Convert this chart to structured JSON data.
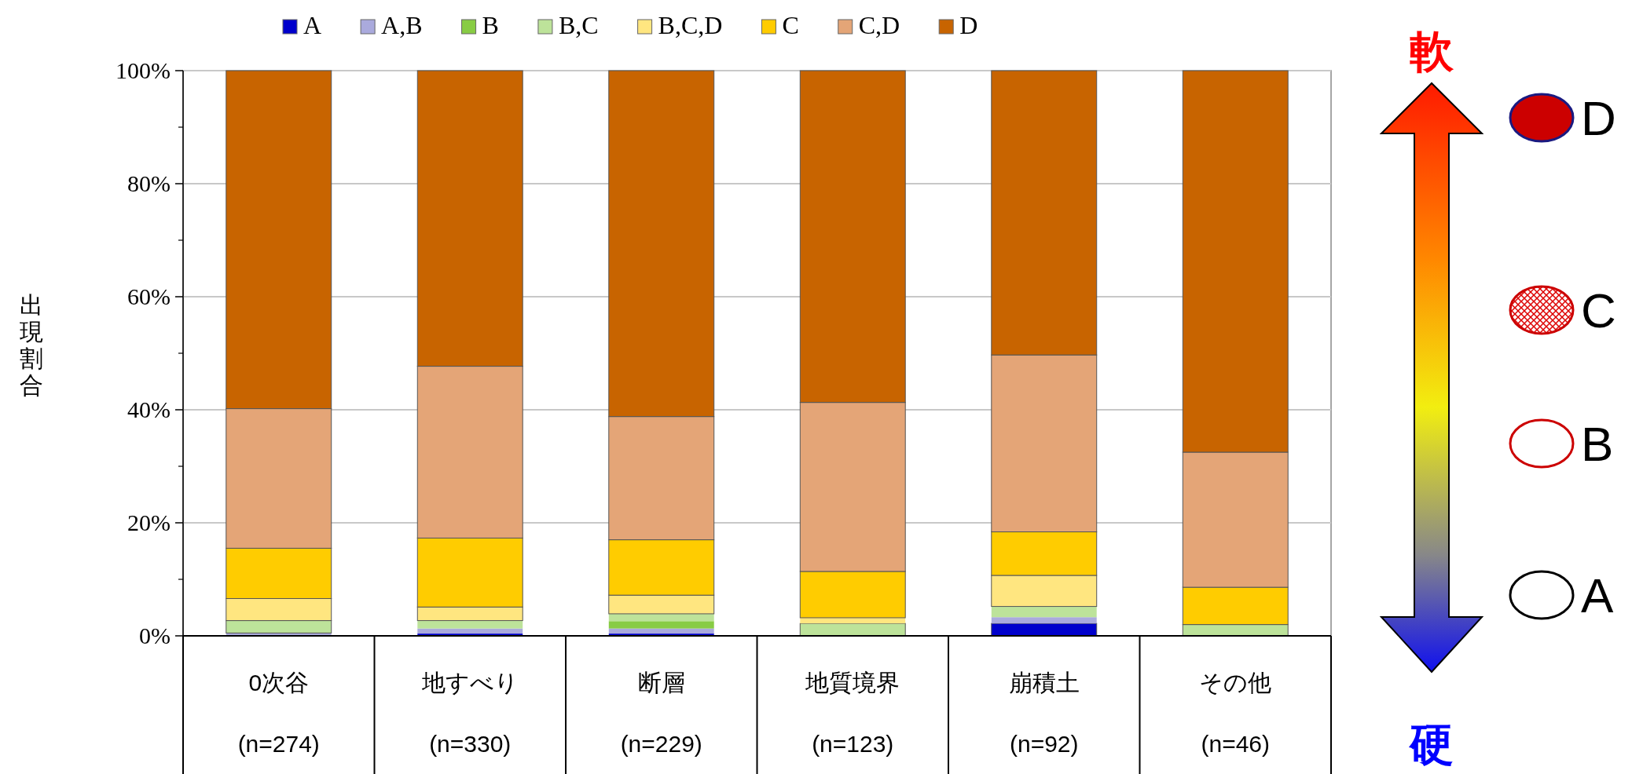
{
  "chart_data": {
    "type": "bar",
    "stacked": true,
    "ylabel": "出現割合",
    "categories": [
      "0次谷\n(n=274)",
      "地すべり\n(n=330)",
      "断層\n(n=229)",
      "地質境界\n(n=123)",
      "崩積土\n(n=92)",
      "その他\n(n=46)"
    ],
    "series": [
      {
        "name": "A",
        "color": "#0000cc",
        "values": [
          0,
          0.4,
          0.4,
          0,
          2.2,
          0
        ]
      },
      {
        "name": "A,B",
        "color": "#aaaadd",
        "values": [
          0.5,
          0.9,
          0.9,
          0,
          1.1,
          0
        ]
      },
      {
        "name": "B",
        "color": "#88cc44",
        "values": [
          0,
          0,
          1.3,
          0,
          0,
          0
        ]
      },
      {
        "name": "B,C",
        "color": "#bde39a",
        "values": [
          2.2,
          1.4,
          1.3,
          2.2,
          1.9,
          2.0
        ]
      },
      {
        "name": "B,C,D",
        "color": "#ffe680",
        "values": [
          3.9,
          2.4,
          3.3,
          1.0,
          5.5,
          0
        ]
      },
      {
        "name": "C",
        "color": "#ffcc00",
        "values": [
          8.9,
          12.2,
          9.8,
          8.2,
          7.7,
          6.6
        ]
      },
      {
        "name": "C,D",
        "color": "#e4a577",
        "values": [
          24.7,
          30.4,
          21.8,
          29.9,
          31.3,
          23.9
        ]
      },
      {
        "name": "D",
        "color": "#c86400",
        "values": [
          59.8,
          52.3,
          61.2,
          58.7,
          50.3,
          67.5
        ]
      }
    ],
    "ylim": [
      0,
      100
    ],
    "yticks": [
      {
        "value": 0,
        "label": "0%"
      },
      {
        "value": 10,
        "label": null
      },
      {
        "value": 20,
        "label": "20%"
      },
      {
        "value": 30,
        "label": null
      },
      {
        "value": 40,
        "label": "40%"
      },
      {
        "value": 50,
        "label": null
      },
      {
        "value": 60,
        "label": "60%"
      },
      {
        "value": 70,
        "label": null
      },
      {
        "value": 80,
        "label": "80%"
      },
      {
        "value": 90,
        "label": null
      },
      {
        "value": 100,
        "label": "100%"
      }
    ],
    "grid": "y",
    "legend": "top",
    "annotations": [
      "軟",
      "硬",
      "D",
      "C",
      "B",
      "A"
    ]
  }
}
